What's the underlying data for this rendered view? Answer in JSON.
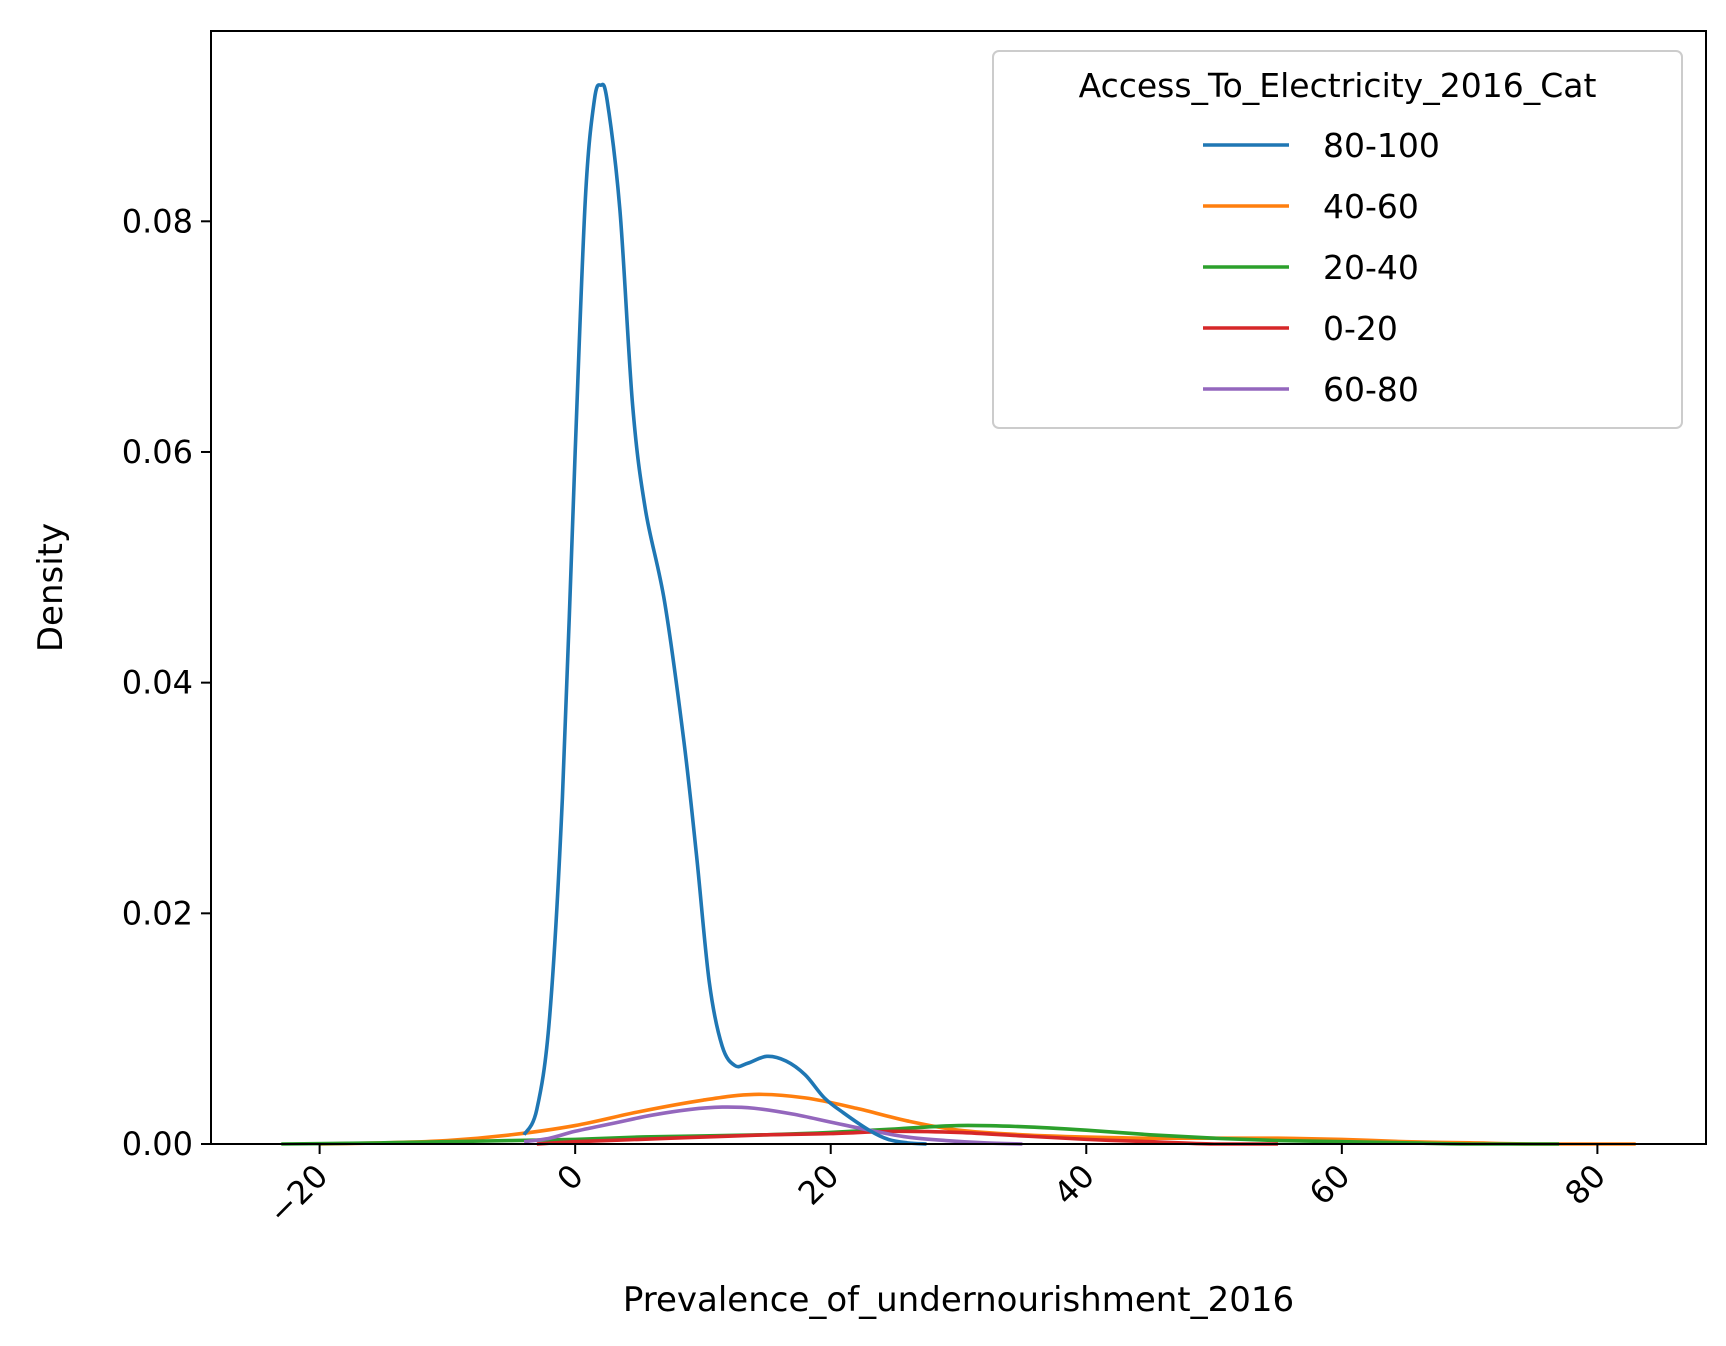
{
  "chart_data": {
    "type": "line",
    "title": "",
    "xlabel": "Prevalence_of_undernourishment_2016",
    "ylabel": "Density",
    "xlim": [
      -28.5,
      88.5
    ],
    "ylim": [
      0,
      0.0965
    ],
    "x_ticks": [
      -20,
      0,
      20,
      40,
      60,
      80
    ],
    "x_tick_labels": [
      "−20",
      "0",
      "20",
      "40",
      "60",
      "80"
    ],
    "x_tick_rotation": 45,
    "y_ticks": [
      0.0,
      0.02,
      0.04,
      0.06,
      0.08
    ],
    "y_tick_labels": [
      "0.00",
      "0.02",
      "0.04",
      "0.06",
      "0.08"
    ],
    "grid": false,
    "legend": {
      "title": "Access_To_Electricity_2016_Cat",
      "placement": "top-right"
    },
    "series": [
      {
        "name": "80-100",
        "color": "#1f77b4",
        "points": [
          [
            -4.0,
            0.0008
          ],
          [
            -3.0,
            0.003
          ],
          [
            -2.0,
            0.011
          ],
          [
            -1.0,
            0.03
          ],
          [
            0.0,
            0.06
          ],
          [
            0.8,
            0.082
          ],
          [
            1.5,
            0.0905
          ],
          [
            2.0,
            0.0918
          ],
          [
            2.5,
            0.0905
          ],
          [
            3.5,
            0.081
          ],
          [
            4.5,
            0.064
          ],
          [
            5.5,
            0.055
          ],
          [
            7.0,
            0.047
          ],
          [
            8.5,
            0.035
          ],
          [
            9.5,
            0.025
          ],
          [
            10.5,
            0.014
          ],
          [
            11.5,
            0.0085
          ],
          [
            12.5,
            0.0068
          ],
          [
            13.5,
            0.007
          ],
          [
            15.0,
            0.0076
          ],
          [
            16.5,
            0.0072
          ],
          [
            18.0,
            0.006
          ],
          [
            19.5,
            0.004
          ],
          [
            21.0,
            0.0027
          ],
          [
            23.0,
            0.0012
          ],
          [
            24.5,
            0.0004
          ],
          [
            26.0,
            0.0001
          ],
          [
            27.5,
            0.0
          ]
        ]
      },
      {
        "name": "40-60",
        "color": "#ff7f0e",
        "points": [
          [
            -20.0,
            0.0
          ],
          [
            -15.0,
            0.0001
          ],
          [
            -10.0,
            0.0003
          ],
          [
            -5.0,
            0.0008
          ],
          [
            0.0,
            0.0016
          ],
          [
            5.0,
            0.0028
          ],
          [
            10.0,
            0.0038
          ],
          [
            14.0,
            0.0043
          ],
          [
            18.0,
            0.004
          ],
          [
            22.0,
            0.0031
          ],
          [
            26.0,
            0.002
          ],
          [
            30.0,
            0.0012
          ],
          [
            35.0,
            0.0008
          ],
          [
            40.0,
            0.0006
          ],
          [
            45.0,
            0.0005
          ],
          [
            50.0,
            0.0005
          ],
          [
            55.0,
            0.0005
          ],
          [
            60.0,
            0.0004
          ],
          [
            65.0,
            0.0002
          ],
          [
            70.0,
            0.0001
          ],
          [
            75.0,
            0.0
          ],
          [
            83.0,
            0.0
          ]
        ]
      },
      {
        "name": "20-40",
        "color": "#2ca02c",
        "points": [
          [
            -23.0,
            0.0
          ],
          [
            -15.0,
            0.0001
          ],
          [
            -10.0,
            0.0002
          ],
          [
            -5.0,
            0.0003
          ],
          [
            0.0,
            0.0004
          ],
          [
            5.0,
            0.0006
          ],
          [
            10.0,
            0.0007
          ],
          [
            15.0,
            0.0008
          ],
          [
            20.0,
            0.001
          ],
          [
            25.0,
            0.0013
          ],
          [
            30.0,
            0.0016
          ],
          [
            35.0,
            0.0015
          ],
          [
            40.0,
            0.0012
          ],
          [
            45.0,
            0.0008
          ],
          [
            50.0,
            0.0005
          ],
          [
            55.0,
            0.0003
          ],
          [
            60.0,
            0.0002
          ],
          [
            65.0,
            0.0001
          ],
          [
            70.0,
            0.0
          ],
          [
            77.0,
            0.0
          ]
        ]
      },
      {
        "name": "0-20",
        "color": "#d62728",
        "points": [
          [
            -3.0,
            0.0
          ],
          [
            0.0,
            0.0002
          ],
          [
            5.0,
            0.0004
          ],
          [
            10.0,
            0.0006
          ],
          [
            15.0,
            0.0008
          ],
          [
            20.0,
            0.0009
          ],
          [
            25.0,
            0.0011
          ],
          [
            30.0,
            0.001
          ],
          [
            35.0,
            0.0007
          ],
          [
            40.0,
            0.0004
          ],
          [
            45.0,
            0.0002
          ],
          [
            50.0,
            0.0
          ],
          [
            55.0,
            0.0
          ]
        ]
      },
      {
        "name": "60-80",
        "color": "#9467bd",
        "points": [
          [
            -4.0,
            0.0002
          ],
          [
            -2.0,
            0.0005
          ],
          [
            0.0,
            0.0011
          ],
          [
            3.0,
            0.0018
          ],
          [
            6.0,
            0.0025
          ],
          [
            9.0,
            0.003
          ],
          [
            11.5,
            0.0032
          ],
          [
            14.0,
            0.0031
          ],
          [
            17.0,
            0.0026
          ],
          [
            20.0,
            0.0019
          ],
          [
            23.0,
            0.0012
          ],
          [
            26.0,
            0.0006
          ],
          [
            29.0,
            0.0003
          ],
          [
            32.0,
            0.0001
          ],
          [
            35.0,
            0.0
          ]
        ]
      }
    ]
  }
}
